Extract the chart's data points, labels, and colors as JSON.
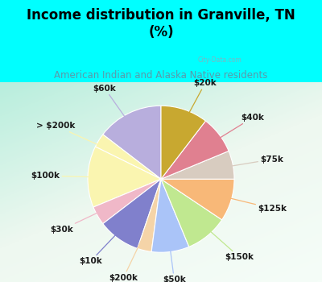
{
  "title": "Income distribution in Granville, TN\n(%)",
  "subtitle": "American Indian and Alaska Native residents",
  "title_color": "#000000",
  "subtitle_color": "#5a9aaa",
  "bg_color": "#00ffff",
  "watermark": "City-Data.com",
  "labels": [
    "$60k",
    "> $200k",
    "$100k",
    "$30k",
    "$10k",
    "$200k",
    "$50k",
    "$150k",
    "$125k",
    "$75k",
    "$40k",
    "$20k"
  ],
  "sizes": [
    14,
    3,
    13,
    4,
    9,
    3,
    8,
    9,
    9,
    6,
    8,
    10
  ],
  "colors": [
    "#b8aedd",
    "#faf5b0",
    "#faf5b0",
    "#f0b8c8",
    "#8080cc",
    "#f5d4a8",
    "#aac4f8",
    "#c0e890",
    "#f8b878",
    "#d8ccc0",
    "#e08090",
    "#c8a830"
  ],
  "label_fontsize": 7.5,
  "title_fontsize": 12,
  "subtitle_fontsize": 8.5,
  "chart_bg": [
    "#f0faf0",
    "#c8eee0"
  ]
}
